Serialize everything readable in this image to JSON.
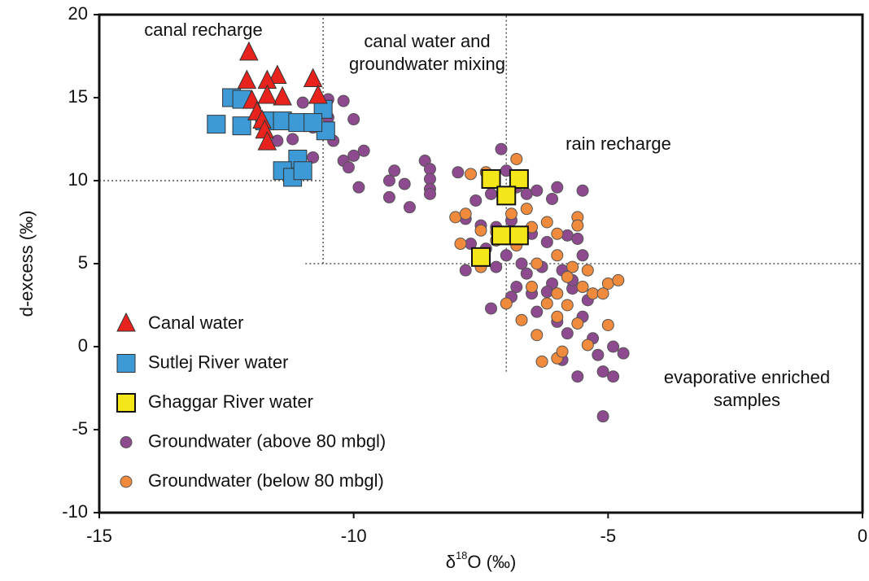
{
  "chart_data": {
    "type": "scatter",
    "xlabel": [
      "δ",
      "18",
      "O (‰)"
    ],
    "ylabel": "d-excess  (‰)",
    "xlim": [
      -15,
      0
    ],
    "xticks": [
      -15,
      -10,
      -5,
      0
    ],
    "ylim": [
      -10,
      20
    ],
    "yticks": [
      -10,
      -5,
      0,
      5,
      10,
      15,
      20
    ],
    "legend_position": "left",
    "annotations": [
      {
        "lines": [
          "canal recharge"
        ]
      },
      {
        "lines": [
          "canal water and",
          "groundwater mixing"
        ]
      },
      {
        "lines": [
          "rain recharge"
        ]
      },
      {
        "lines": [
          "evaporative enriched",
          "samples"
        ]
      }
    ],
    "reference_lines": [
      {
        "axis": "y",
        "value": 10,
        "from": -15,
        "to": -10.6
      },
      {
        "axis": "x",
        "value": -10.6,
        "from": 5,
        "to": 20
      },
      {
        "axis": "y",
        "value": 5,
        "from": -10.95,
        "to": 0
      },
      {
        "axis": "x",
        "value": -7,
        "from": -1.5,
        "to": 20
      }
    ],
    "series": [
      {
        "name": "Canal water",
        "marker": "triangle",
        "color": "#e8231e",
        "x": [
          -12.06,
          -12.1,
          -11.5,
          -11.7,
          -10.8,
          -10.7,
          -11.4,
          -11.7,
          -12.0,
          -11.9,
          -11.8,
          -11.75,
          -11.7
        ],
        "y": [
          17.7,
          16.0,
          16.3,
          16.0,
          16.1,
          15.1,
          15.0,
          15.1,
          14.8,
          14.1,
          13.6,
          13.0,
          12.3
        ]
      },
      {
        "name": "Sutlej River water",
        "marker": "square",
        "color": "#3d9ad6",
        "x": [
          -12.4,
          -12.2,
          -12.7,
          -12.2,
          -11.75,
          -11.4,
          -11.1,
          -10.6,
          -10.55,
          -11.1,
          -11.4,
          -11.2,
          -11.0,
          -10.8
        ],
        "y": [
          15.0,
          14.9,
          13.4,
          13.3,
          13.6,
          13.6,
          13.5,
          14.3,
          13.0,
          11.3,
          10.6,
          10.2,
          10.6,
          13.5
        ]
      },
      {
        "name": "Ghaggar River water",
        "marker": "square",
        "color": "#f5e61a",
        "x": [
          -7.3,
          -6.75,
          -7.0,
          -7.1,
          -6.75,
          -7.5
        ],
        "y": [
          10.1,
          10.1,
          9.1,
          6.7,
          6.7,
          5.4
        ]
      },
      {
        "name": "Groundwater (above 80 mbgl)",
        "marker": "circle",
        "color": "#8e4a8e",
        "x": [
          -11.0,
          -10.5,
          -10.2,
          -10.5,
          -10.0,
          -10.8,
          -11.2,
          -11.5,
          -10.4,
          -10.2,
          -10.0,
          -9.8,
          -10.1,
          -10.8,
          -9.9,
          -9.2,
          -9.3,
          -9.0,
          -9.3,
          -8.9,
          -8.6,
          -8.5,
          -8.5,
          -8.5,
          -8.5,
          -7.95,
          -7.6,
          -7.3,
          -7.1,
          -7.0,
          -6.8,
          -6.6,
          -6.4,
          -6.1,
          -6.0,
          -5.5,
          -7.8,
          -7.5,
          -7.2,
          -6.9,
          -6.5,
          -6.2,
          -5.8,
          -5.6,
          -7.7,
          -7.4,
          -7.0,
          -6.7,
          -6.3,
          -5.9,
          -5.5,
          -7.8,
          -7.2,
          -6.8,
          -6.5,
          -6.1,
          -5.7,
          -5.4,
          -7.3,
          -6.9,
          -6.4,
          -6.0,
          -5.8,
          -5.5,
          -5.3,
          -5.6,
          -5.1,
          -4.9,
          -4.7,
          -4.9,
          -5.2,
          -5.9,
          -5.1,
          -6.2,
          -5.7,
          -6.6
        ],
        "y": [
          14.7,
          14.9,
          14.8,
          13.8,
          13.7,
          13.2,
          12.5,
          12.4,
          12.4,
          11.2,
          11.5,
          11.8,
          10.8,
          11.4,
          9.6,
          10.6,
          10.0,
          9.8,
          9.0,
          8.4,
          11.2,
          10.7,
          10.1,
          9.5,
          9.2,
          10.5,
          8.8,
          9.2,
          11.9,
          10.6,
          9.6,
          9.2,
          9.4,
          8.9,
          9.6,
          9.4,
          7.7,
          7.3,
          7.2,
          7.6,
          6.8,
          6.3,
          6.7,
          6.5,
          6.2,
          5.9,
          5.5,
          5.0,
          4.8,
          4.6,
          5.5,
          4.6,
          4.8,
          3.6,
          3.2,
          3.8,
          3.5,
          2.8,
          2.3,
          3.0,
          2.1,
          1.5,
          0.8,
          1.8,
          0.5,
          -1.8,
          -1.5,
          -1.8,
          -0.4,
          0.0,
          -0.5,
          -0.8,
          -4.2,
          3.3,
          4.0,
          4.4
        ]
      },
      {
        "name": "Groundwater (below 80 mbgl)",
        "marker": "circle",
        "color": "#f08a3c",
        "x": [
          -8.0,
          -7.9,
          -7.7,
          -7.4,
          -7.8,
          -7.5,
          -7.2,
          -7.5,
          -6.8,
          -6.6,
          -6.9,
          -6.5,
          -6.2,
          -6.0,
          -5.6,
          -5.6,
          -7.2,
          -6.8,
          -6.4,
          -6.0,
          -5.7,
          -5.4,
          -7.0,
          -6.5,
          -6.2,
          -6.0,
          -5.8,
          -5.5,
          -5.3,
          -5.0,
          -4.8,
          -6.4,
          -6.0,
          -5.8,
          -5.6,
          -5.4,
          -5.0,
          -6.3,
          -6.0,
          -5.1,
          -5.9,
          -6.7
        ],
        "y": [
          7.8,
          6.2,
          10.4,
          10.5,
          8.0,
          7.0,
          6.9,
          4.8,
          11.3,
          8.3,
          8.0,
          7.2,
          7.5,
          6.8,
          7.8,
          7.3,
          6.4,
          6.1,
          5.0,
          5.5,
          4.8,
          4.6,
          2.6,
          3.6,
          2.6,
          3.2,
          4.2,
          3.6,
          3.2,
          3.8,
          4.0,
          0.7,
          1.8,
          2.5,
          1.4,
          0.1,
          1.3,
          -0.9,
          -0.7,
          3.2,
          -0.3,
          1.6
        ]
      }
    ]
  }
}
